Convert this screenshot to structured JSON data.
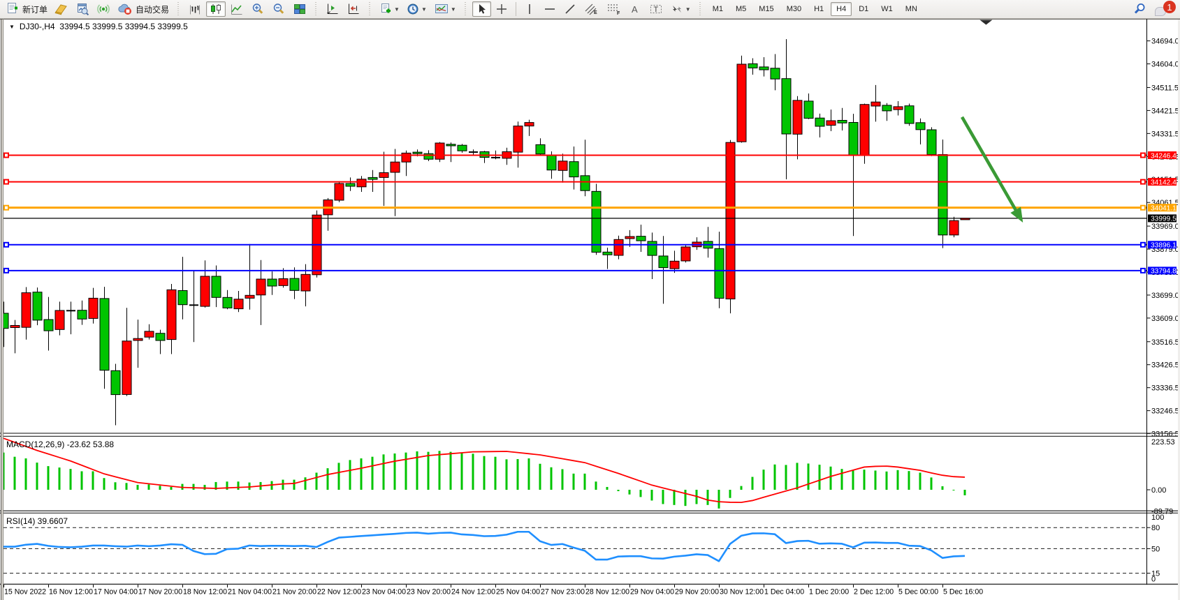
{
  "window": {
    "toolbar": {
      "new_order_label": "新订单",
      "autotrading_label": "自动交易",
      "timeframes": [
        "M1",
        "M5",
        "M15",
        "M30",
        "H1",
        "H4",
        "D1",
        "W1",
        "MN"
      ],
      "active_timeframe": "H4",
      "notification_count": "1"
    },
    "chart_header": {
      "symbol": "DJ30-,H4",
      "quote": "33994.5 33999.5 33994.5 33999.5"
    }
  },
  "chart_data": {
    "type": "candlestick",
    "symbol": "DJ30-",
    "period": "H4",
    "bars": [
      {
        "o": 33627.8,
        "h": 33673.4,
        "l": 33495.6,
        "c": 33568.6,
        "d": "g"
      },
      {
        "o": 33571.8,
        "h": 33601.6,
        "l": 33471.1,
        "c": 33580.0,
        "d": "r"
      },
      {
        "o": 33572.7,
        "h": 33730.2,
        "l": 33524.6,
        "c": 33708.1,
        "d": "r"
      },
      {
        "o": 33710.6,
        "h": 33728.6,
        "l": 33580.9,
        "c": 33600.8,
        "d": "g"
      },
      {
        "o": 33603.2,
        "h": 33691.5,
        "l": 33481.7,
        "c": 33559.3,
        "d": "g"
      },
      {
        "o": 33564.2,
        "h": 33673.4,
        "l": 33541.3,
        "c": 33638.8,
        "d": "r"
      },
      {
        "o": 33637.9,
        "h": 33673.4,
        "l": 33545.4,
        "c": 33637.9,
        "d": "k"
      },
      {
        "o": 33639.6,
        "h": 33677.8,
        "l": 33582.5,
        "c": 33605.2,
        "d": "g"
      },
      {
        "o": 33607.6,
        "h": 33727.2,
        "l": 33587.7,
        "c": 33686.8,
        "d": "r"
      },
      {
        "o": 33685.5,
        "h": 33731.1,
        "l": 33332.1,
        "c": 33404.7,
        "d": "g"
      },
      {
        "o": 33403.1,
        "h": 33429.8,
        "l": 33189.5,
        "c": 33309.4,
        "d": "g"
      },
      {
        "o": 33309.9,
        "h": 33648.9,
        "l": 33303.9,
        "c": 33519.1,
        "d": "r"
      },
      {
        "o": 33521.3,
        "h": 33603.0,
        "l": 33414.5,
        "c": 33529.0,
        "d": "r"
      },
      {
        "o": 33534.4,
        "h": 33584.7,
        "l": 33525.1,
        "c": 33557.1,
        "d": "r"
      },
      {
        "o": 33549.4,
        "h": 33563.4,
        "l": 33468.1,
        "c": 33521.3,
        "d": "g"
      },
      {
        "o": 33525.1,
        "h": 33742.5,
        "l": 33468.1,
        "c": 33719.6,
        "d": "r"
      },
      {
        "o": 33716.6,
        "h": 33848.8,
        "l": 33604.1,
        "c": 33661.4,
        "d": "g"
      },
      {
        "o": 33659.7,
        "h": 33793.1,
        "l": 33515.3,
        "c": 33659.7,
        "d": "k"
      },
      {
        "o": 33654.9,
        "h": 33834.6,
        "l": 33649.9,
        "c": 33772.6,
        "d": "r"
      },
      {
        "o": 33772.6,
        "h": 33814.9,
        "l": 33651.9,
        "c": 33689.8,
        "d": "g"
      },
      {
        "o": 33689.8,
        "h": 33718.5,
        "l": 33643.4,
        "c": 33648.6,
        "d": "g"
      },
      {
        "o": 33645.3,
        "h": 33715.2,
        "l": 33632.7,
        "c": 33683.0,
        "d": "r"
      },
      {
        "o": 33686.8,
        "h": 33899.0,
        "l": 33642.0,
        "c": 33698.0,
        "d": "r"
      },
      {
        "o": 33699.4,
        "h": 33835.9,
        "l": 33581.9,
        "c": 33761.6,
        "d": "r"
      },
      {
        "o": 33761.6,
        "h": 33791.4,
        "l": 33699.4,
        "c": 33734.3,
        "d": "g"
      },
      {
        "o": 33736.2,
        "h": 33804.3,
        "l": 33728.1,
        "c": 33763.0,
        "d": "r"
      },
      {
        "o": 33764.1,
        "h": 33807.3,
        "l": 33683.5,
        "c": 33717.1,
        "d": "g"
      },
      {
        "o": 33715.2,
        "h": 33820.1,
        "l": 33654.9,
        "c": 33779.9,
        "d": "r"
      },
      {
        "o": 33778.6,
        "h": 34030.4,
        "l": 33767.7,
        "c": 34012.4,
        "d": "r"
      },
      {
        "o": 34013.2,
        "h": 34078.7,
        "l": 33950.9,
        "c": 34071.6,
        "d": "r"
      },
      {
        "o": 34070.3,
        "h": 34144.5,
        "l": 34062.9,
        "c": 34135.8,
        "d": "r"
      },
      {
        "o": 34135.8,
        "h": 34159.3,
        "l": 34106.6,
        "c": 34124.9,
        "d": "g"
      },
      {
        "o": 34122.7,
        "h": 34165.0,
        "l": 34103.0,
        "c": 34152.7,
        "d": "r"
      },
      {
        "o": 34159.3,
        "h": 34188.5,
        "l": 34103.0,
        "c": 34151.9,
        "d": "g"
      },
      {
        "o": 34159.3,
        "h": 34260.1,
        "l": 34048.1,
        "c": 34178.1,
        "d": "r"
      },
      {
        "o": 34179.5,
        "h": 34271.0,
        "l": 34008.0,
        "c": 34219.9,
        "d": "r"
      },
      {
        "o": 34219.9,
        "h": 34265.0,
        "l": 34165.0,
        "c": 34254.9,
        "d": "r"
      },
      {
        "o": 34258.4,
        "h": 34268.8,
        "l": 34241.8,
        "c": 34252.7,
        "d": "g"
      },
      {
        "o": 34252.7,
        "h": 34265.8,
        "l": 34223.5,
        "c": 34230.8,
        "d": "g"
      },
      {
        "o": 34230.8,
        "h": 34298.0,
        "l": 34219.9,
        "c": 34294.2,
        "d": "r"
      },
      {
        "o": 34289.3,
        "h": 34296.4,
        "l": 34219.9,
        "c": 34283.3,
        "d": "g"
      },
      {
        "o": 34285.5,
        "h": 34290.6,
        "l": 34256.2,
        "c": 34263.6,
        "d": "g"
      },
      {
        "o": 34258.8,
        "h": 34268.8,
        "l": 34248.9,
        "c": 34258.8,
        "d": "k"
      },
      {
        "o": 34260.1,
        "h": 34263.6,
        "l": 34216.1,
        "c": 34237.9,
        "d": "g"
      },
      {
        "o": 34237.0,
        "h": 34265.0,
        "l": 34230.8,
        "c": 34237.0,
        "d": "k"
      },
      {
        "o": 34234.4,
        "h": 34275.9,
        "l": 34208.7,
        "c": 34260.1,
        "d": "r"
      },
      {
        "o": 34258.4,
        "h": 34378.3,
        "l": 34197.8,
        "c": 34360.8,
        "d": "r"
      },
      {
        "o": 34360.8,
        "h": 34385.4,
        "l": 34322.0,
        "c": 34374.5,
        "d": "r"
      },
      {
        "o": 34287.6,
        "h": 34312.5,
        "l": 34245.3,
        "c": 34251.3,
        "d": "g"
      },
      {
        "o": 34246.7,
        "h": 34261.4,
        "l": 34154.1,
        "c": 34188.5,
        "d": "g"
      },
      {
        "o": 34186.9,
        "h": 34252.7,
        "l": 34139.3,
        "c": 34223.5,
        "d": "r"
      },
      {
        "o": 34221.3,
        "h": 34280.5,
        "l": 34112.3,
        "c": 34161.5,
        "d": "g"
      },
      {
        "o": 34166.4,
        "h": 34307.3,
        "l": 34086.1,
        "c": 34107.9,
        "d": "g"
      },
      {
        "o": 34104.9,
        "h": 34134.4,
        "l": 33856.7,
        "c": 33866.8,
        "d": "g"
      },
      {
        "o": 33867.3,
        "h": 33884.5,
        "l": 33801.2,
        "c": 33856.7,
        "d": "g"
      },
      {
        "o": 33854.5,
        "h": 33931.8,
        "l": 33839.2,
        "c": 33916.5,
        "d": "r"
      },
      {
        "o": 33920.0,
        "h": 33953.1,
        "l": 33887.5,
        "c": 33928.2,
        "d": "r"
      },
      {
        "o": 33929.3,
        "h": 33974.7,
        "l": 33868.2,
        "c": 33911.6,
        "d": "g"
      },
      {
        "o": 33909.1,
        "h": 33943.5,
        "l": 33761.6,
        "c": 33854.2,
        "d": "g"
      },
      {
        "o": 33852.0,
        "h": 33930.4,
        "l": 33665.2,
        "c": 33806.4,
        "d": "g"
      },
      {
        "o": 33802.3,
        "h": 33872.5,
        "l": 33786.0,
        "c": 33831.8,
        "d": "r"
      },
      {
        "o": 33832.7,
        "h": 33893.8,
        "l": 33826.6,
        "c": 33887.5,
        "d": "r"
      },
      {
        "o": 33888.1,
        "h": 33925.2,
        "l": 33876.1,
        "c": 33906.4,
        "d": "r"
      },
      {
        "o": 33909.1,
        "h": 33965.9,
        "l": 33845.5,
        "c": 33882.6,
        "d": "g"
      },
      {
        "o": 33881.0,
        "h": 33947.1,
        "l": 33647.5,
        "c": 33686.5,
        "d": "g"
      },
      {
        "o": 33683.8,
        "h": 34305.7,
        "l": 33627.6,
        "c": 34296.4,
        "d": "r"
      },
      {
        "o": 34299.1,
        "h": 34636.4,
        "l": 34295.6,
        "c": 34602.8,
        "d": "r"
      },
      {
        "o": 34604.4,
        "h": 34626.0,
        "l": 34561.8,
        "c": 34588.0,
        "d": "g"
      },
      {
        "o": 34592.1,
        "h": 34630.1,
        "l": 34554.7,
        "c": 34580.9,
        "d": "g"
      },
      {
        "o": 34587.0,
        "h": 34642.4,
        "l": 34500.7,
        "c": 34544.9,
        "d": "g"
      },
      {
        "o": 34546.3,
        "h": 34700.8,
        "l": 34152.2,
        "c": 34329.7,
        "d": "g"
      },
      {
        "o": 34328.9,
        "h": 34477.7,
        "l": 34230.3,
        "c": 34461.1,
        "d": "r"
      },
      {
        "o": 34458.3,
        "h": 34488.1,
        "l": 34387.6,
        "c": 34391.1,
        "d": "g"
      },
      {
        "o": 34392.0,
        "h": 34409.2,
        "l": 34316.0,
        "c": 34359.7,
        "d": "g"
      },
      {
        "o": 34363.8,
        "h": 34425.3,
        "l": 34340.6,
        "c": 34381.6,
        "d": "r"
      },
      {
        "o": 34383.0,
        "h": 34431.3,
        "l": 34343.4,
        "c": 34372.8,
        "d": "g"
      },
      {
        "o": 34374.8,
        "h": 34408.6,
        "l": 33930.4,
        "c": 34246.9,
        "d": "g"
      },
      {
        "o": 34245.0,
        "h": 34448.5,
        "l": 34212.8,
        "c": 34445.2,
        "d": "r"
      },
      {
        "o": 34438.9,
        "h": 34521.1,
        "l": 34378.0,
        "c": 34454.8,
        "d": "r"
      },
      {
        "o": 34441.9,
        "h": 34450.4,
        "l": 34380.8,
        "c": 34420.1,
        "d": "g"
      },
      {
        "o": 34425.0,
        "h": 34458.1,
        "l": 34402.1,
        "c": 34436.5,
        "d": "r"
      },
      {
        "o": 34439.8,
        "h": 34448.5,
        "l": 34361.9,
        "c": 34370.7,
        "d": "g"
      },
      {
        "o": 34373.9,
        "h": 34390.3,
        "l": 34288.7,
        "c": 34346.6,
        "d": "g"
      },
      {
        "o": 34346.1,
        "h": 34355.9,
        "l": 34243.1,
        "c": 34249.1,
        "d": "g"
      },
      {
        "o": 34249.1,
        "h": 34307.8,
        "l": 33882.9,
        "c": 33934.2,
        "d": "g"
      },
      {
        "o": 33934.2,
        "h": 34005.3,
        "l": 33925.2,
        "c": 33990.5,
        "d": "r"
      },
      {
        "o": 33994.5,
        "h": 33999.5,
        "l": 33994.5,
        "c": 33999.5,
        "d": "r"
      }
    ],
    "x_labels": [
      "15 Nov 2022",
      "16 Nov 12:00",
      "17 Nov 04:00",
      "17 Nov 20:00",
      "18 Nov 12:00",
      "21 Nov 04:00",
      "21 Nov 20:00",
      "22 Nov 12:00",
      "23 Nov 04:00",
      "23 Nov 20:00",
      "24 Nov 12:00",
      "25 Nov 04:00",
      "27 Nov 23:00",
      "28 Nov 12:00",
      "29 Nov 04:00",
      "29 Nov 20:00",
      "30 Nov 12:00",
      "1 Dec 04:00",
      "1 Dec 20:00",
      "2 Dec 12:00",
      "5 Dec 00:00",
      "5 Dec 16:00"
    ],
    "x_label_every_bars": 4,
    "price_ticks": [
      34694.0,
      34604.0,
      34511.5,
      34421.5,
      34331.5,
      34241.5,
      34151.5,
      34061.5,
      33969.0,
      33879.0,
      33789.0,
      33699.0,
      33609.0,
      33516.5,
      33426.5,
      33336.5,
      33246.5,
      33156.5
    ],
    "hlines": [
      {
        "price": 34246.4,
        "color": "#ff0000",
        "label": "34246.4",
        "width": 2
      },
      {
        "price": 34142.4,
        "color": "#ff0000",
        "label": "34142.4",
        "width": 2
      },
      {
        "price": 34041.1,
        "color": "#ffa500",
        "label": "34041.1",
        "width": 3
      },
      {
        "price": 33896.1,
        "color": "#0000ff",
        "label": "33896.1",
        "width": 2
      },
      {
        "price": 33794.8,
        "color": "#0000ff",
        "label": "33794.8",
        "width": 2
      }
    ],
    "current_price": {
      "value": 33999.5,
      "label": "33999.5"
    },
    "arrow": {
      "from_bar": 85.75,
      "from_price": 34396.0,
      "to_bar": 91.2,
      "to_price": 33983.0,
      "color": "#3a9a35"
    },
    "shift_marker_bar": 87.9,
    "macd": {
      "label": "MACD(12,26,9) -23.62 53.88",
      "params": "12,26,9",
      "value_main": -23.62,
      "value_signal": 53.88,
      "scale_labels": [
        "223.53",
        "0.00",
        "-89.79"
      ],
      "scale_values": [
        223.53,
        0.0,
        -89.79
      ],
      "main": [
        159,
        141,
        134,
        116,
        101,
        95,
        89,
        79,
        79,
        50,
        32,
        29,
        21,
        23,
        17,
        12,
        25,
        25,
        21,
        33,
        35,
        35,
        31,
        33,
        37,
        43,
        43,
        53,
        73,
        92,
        115,
        127,
        134,
        141,
        151,
        155,
        159,
        164,
        162,
        166,
        162,
        157,
        154,
        144,
        141,
        130,
        131,
        134,
        111,
        96,
        88,
        69,
        69,
        35,
        12,
        -6,
        -20,
        -31,
        -46,
        -61,
        -65,
        -69,
        -61,
        -65,
        -80,
        -35,
        16,
        55,
        86,
        108,
        106,
        115,
        112,
        107,
        99,
        89,
        84,
        86,
        82,
        78,
        84,
        80,
        73,
        52.5,
        15,
        -2,
        -23.62
      ],
      "signal": [
        220.0,
        202.67,
        185.33,
        168.0,
        153.0,
        138.0,
        123.0,
        104.67,
        86.33,
        68.0,
        55.67,
        43.33,
        31.0,
        25.75,
        20.5,
        15.25,
        10.0,
        8.67,
        7.33,
        6.0,
        8.0,
        10.0,
        12.0,
        16.33,
        20.67,
        25.0,
        27.0,
        39.67,
        52.33,
        65.0,
        74.0,
        83.0,
        92.0,
        102.0,
        112.0,
        122.0,
        130.0,
        138.0,
        146.0,
        150.0,
        154.0,
        158.0,
        162.0,
        162.67,
        163.33,
        164.0,
        159.0,
        154.0,
        149.0,
        140.75,
        132.5,
        124.25,
        116.0,
        100.67,
        85.33,
        70.0,
        53.33,
        36.67,
        20.0,
        8.0,
        -4.0,
        -16.0,
        -28.0,
        -44.0,
        -51.0,
        -53.5,
        -54.0,
        -46.0,
        -32.0,
        -18.67,
        -5.33,
        8.0,
        24.33,
        40.67,
        57.0,
        70.33,
        83.67,
        97.0,
        100.0,
        101.0,
        97.0,
        90.0,
        83.0,
        72.0,
        62.0,
        56.0,
        53.88
      ]
    },
    "rsi": {
      "label": "RSI(14) 39.6607",
      "value": 39.6607,
      "levels": [
        80,
        50,
        15
      ],
      "scale_labels": [
        "100",
        "80",
        "50",
        "15",
        "0"
      ],
      "scale_values": [
        100,
        80,
        50,
        15,
        0
      ],
      "values": [
        52.8,
        52.8,
        55.6,
        56.8,
        54.0,
        52.4,
        52.0,
        52.8,
        54.4,
        54.4,
        53.5,
        52.9,
        54.4,
        53.5,
        54.4,
        56.3,
        55.5,
        46.7,
        42.2,
        42.6,
        49.3,
        50.0,
        54.5,
        53.7,
        54.1,
        54.1,
        53.7,
        54.1,
        52.3,
        59.5,
        65.7,
        66.8,
        68.0,
        69.0,
        70.1,
        71.1,
        72.4,
        72.8,
        71.3,
        72.4,
        72.8,
        70.3,
        69.5,
        67.8,
        68.1,
        69.9,
        74.0,
        74.0,
        60.6,
        55.3,
        56.6,
        51.5,
        47.1,
        34.4,
        34.4,
        38.8,
        39.3,
        39.3,
        36.1,
        35.8,
        38.6,
        40.0,
        42.0,
        40.9,
        32.2,
        56.8,
        68.4,
        71.7,
        71.9,
        70.6,
        57.9,
        60.8,
        61.2,
        57.0,
        57.5,
        57.0,
        51.9,
        58.5,
        58.8,
        58.2,
        58.2,
        54.2,
        53.7,
        47.5,
        36.8,
        39.0,
        39.66
      ]
    },
    "colors": {
      "up": "#ff0000",
      "down": "#00c400",
      "doji": "#000000",
      "macd_hist": "#00c400",
      "macd_signal": "#ff0000",
      "rsi_line": "#1f8fff",
      "background": "#ffffff",
      "axis_text": "#000000"
    }
  }
}
